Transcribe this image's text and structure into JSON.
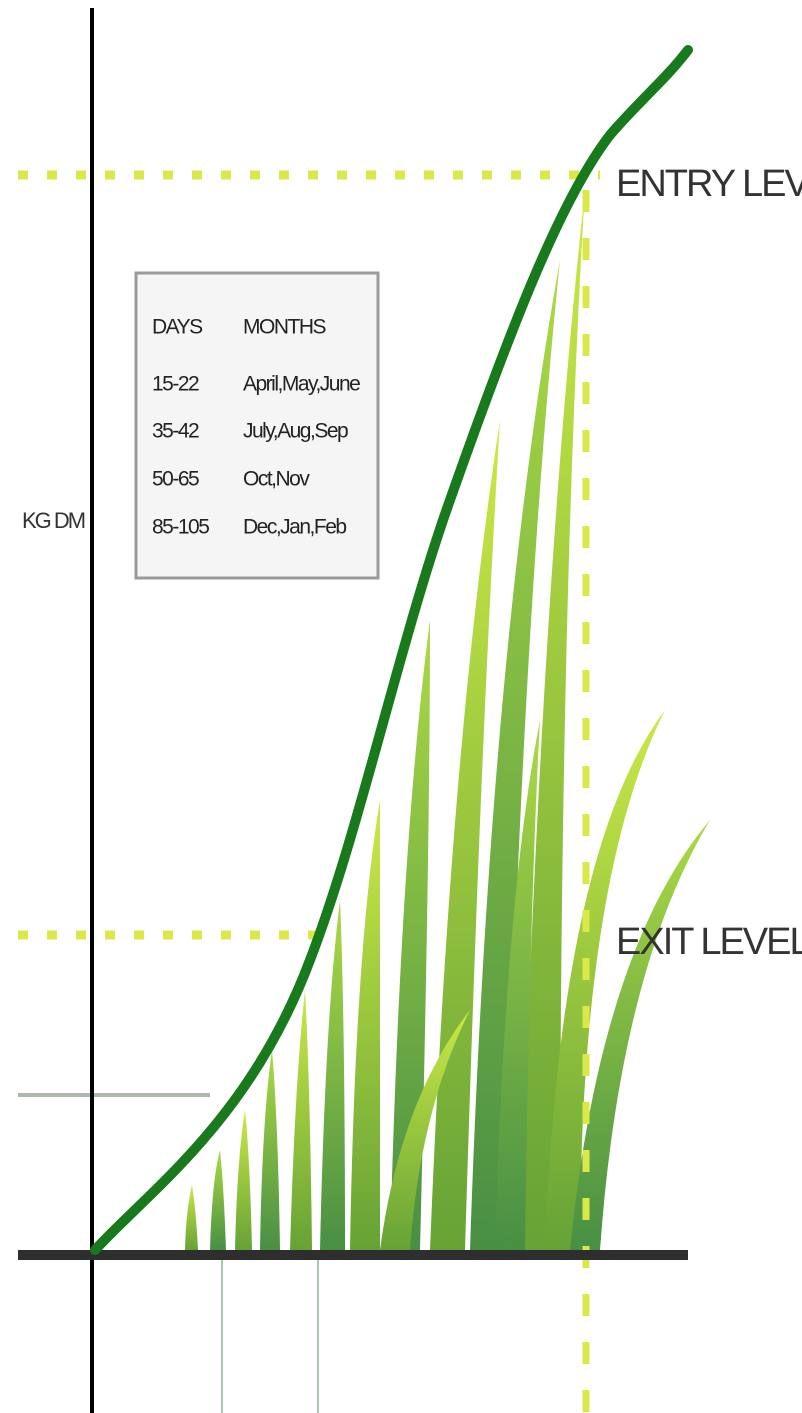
{
  "labels": {
    "entry": "ENTRY LEVEL",
    "exit": "EXIT LEVEL",
    "y_axis": "KG DM"
  },
  "table": {
    "headers": [
      "DAYS",
      "MONTHS"
    ],
    "rows": [
      [
        "15-22",
        "April,May,June"
      ],
      [
        "35-42",
        "July,Aug,Sep"
      ],
      [
        "50-65",
        "Oct,Nov"
      ],
      [
        "85-105",
        "Dec,Jan,Feb"
      ]
    ]
  }
}
